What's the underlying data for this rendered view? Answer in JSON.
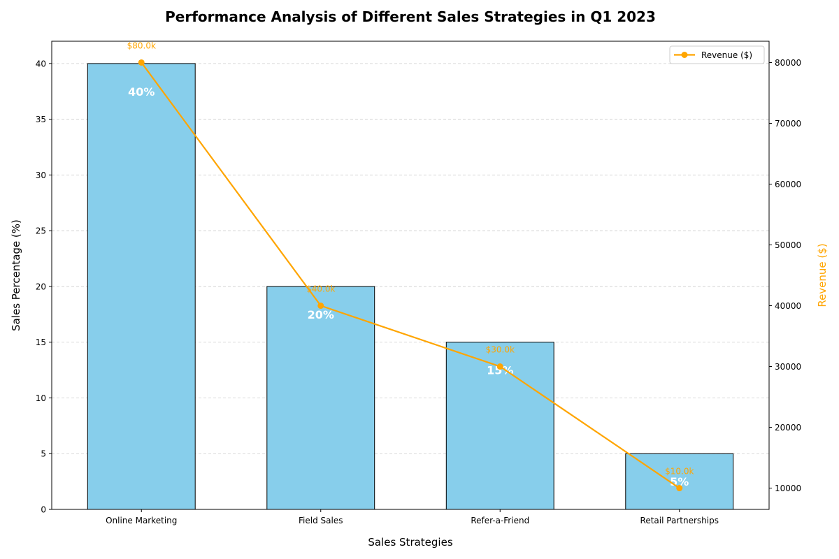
{
  "chart_data": {
    "type": "bar",
    "title": "Performance Analysis of Different Sales Strategies in Q1 2023",
    "xlabel": "Sales Strategies",
    "ylabel": "Sales Percentage (%)",
    "y2label": "Revenue ($)",
    "categories": [
      "Online Marketing",
      "Field Sales",
      "Refer-a-Friend",
      "Retail Partnerships"
    ],
    "ylim": [
      0,
      42
    ],
    "yticks": [
      0,
      5,
      10,
      15,
      20,
      25,
      30,
      35,
      40
    ],
    "y2lim": [
      6500,
      83500
    ],
    "y2ticks": [
      10000,
      20000,
      30000,
      40000,
      50000,
      60000,
      70000,
      80000
    ],
    "grid": true,
    "legend_position": "top-right",
    "series": [
      {
        "name": "Sales Percentage (%)",
        "type": "bar",
        "values": [
          40,
          20,
          15,
          5
        ],
        "labels": [
          "40%",
          "20%",
          "15%",
          "5%"
        ],
        "color": "#87ceeb"
      },
      {
        "name": "Revenue ($)",
        "type": "line",
        "axis": "right",
        "values": [
          80000,
          40000,
          30000,
          10000
        ],
        "labels": [
          "$80.0k",
          "$40.0k",
          "$30.0k",
          "$10.0k"
        ],
        "color": "#ffa500"
      }
    ]
  }
}
